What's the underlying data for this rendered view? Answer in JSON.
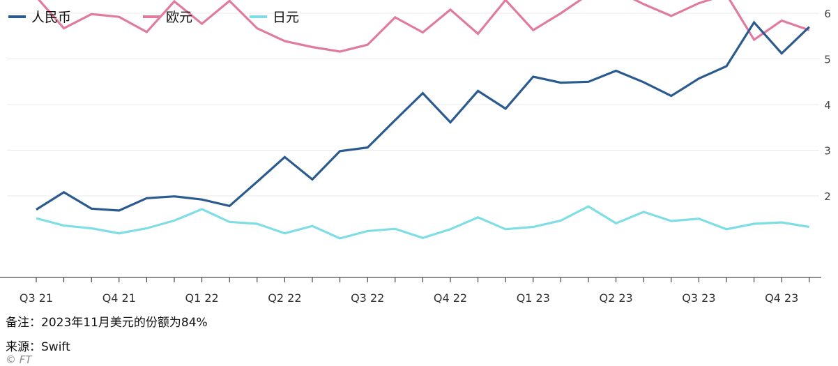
{
  "chart_data": {
    "type": "line",
    "x": [
      "Q3 21",
      "",
      "",
      "Q4 21",
      "",
      "",
      "Q1 22",
      "",
      "",
      "Q2 22",
      "",
      "",
      "Q3 22",
      "",
      "",
      "Q4 22",
      "",
      "",
      "Q1 23",
      "",
      "",
      "Q2 23",
      "",
      "",
      "Q3 23",
      "",
      "",
      "Q4 23",
      ""
    ],
    "x_tick_labels": [
      "Q3 21",
      "Q4 21",
      "Q1 22",
      "Q2 22",
      "Q3 22",
      "Q4 22",
      "Q1 23",
      "Q2 23",
      "Q3 23",
      "Q4 23"
    ],
    "y_ticks": [
      "2",
      "3",
      "4",
      "5",
      "6"
    ],
    "ylim": [
      0.8,
      6.8
    ],
    "y_axis_side": "right",
    "grid": "horizontal",
    "legend_position": "top-left",
    "series": [
      {
        "name": "人民币",
        "color": "#2a5a8e",
        "values": [
          1.7,
          2.08,
          1.72,
          1.68,
          1.95,
          1.99,
          1.92,
          1.78,
          2.31,
          2.85,
          2.36,
          2.98,
          3.06,
          3.66,
          4.25,
          3.61,
          4.3,
          3.91,
          4.61,
          4.48,
          4.5,
          4.74,
          4.49,
          4.19,
          4.57,
          4.84,
          5.8,
          5.12,
          5.7
        ]
      },
      {
        "name": "欧元",
        "color": "#e07ba0",
        "values": [
          6.36,
          5.67,
          5.98,
          5.92,
          5.59,
          6.26,
          5.77,
          6.27,
          5.67,
          5.39,
          5.26,
          5.16,
          5.31,
          5.91,
          5.58,
          6.08,
          5.55,
          6.29,
          5.63,
          6.0,
          6.41,
          6.5,
          6.2,
          5.94,
          6.22,
          6.41,
          5.42,
          5.84,
          5.63
        ]
      },
      {
        "name": "日元",
        "color": "#7fdde6",
        "values": [
          1.51,
          1.35,
          1.29,
          1.18,
          1.29,
          1.46,
          1.71,
          1.43,
          1.39,
          1.18,
          1.34,
          1.07,
          1.23,
          1.28,
          1.08,
          1.27,
          1.53,
          1.27,
          1.32,
          1.46,
          1.77,
          1.4,
          1.65,
          1.45,
          1.5,
          1.27,
          1.39,
          1.42,
          1.32
        ]
      }
    ],
    "note": "备注：2023年11月美元的份额为84%",
    "source": "来源：Swift",
    "credit": "© FT"
  }
}
